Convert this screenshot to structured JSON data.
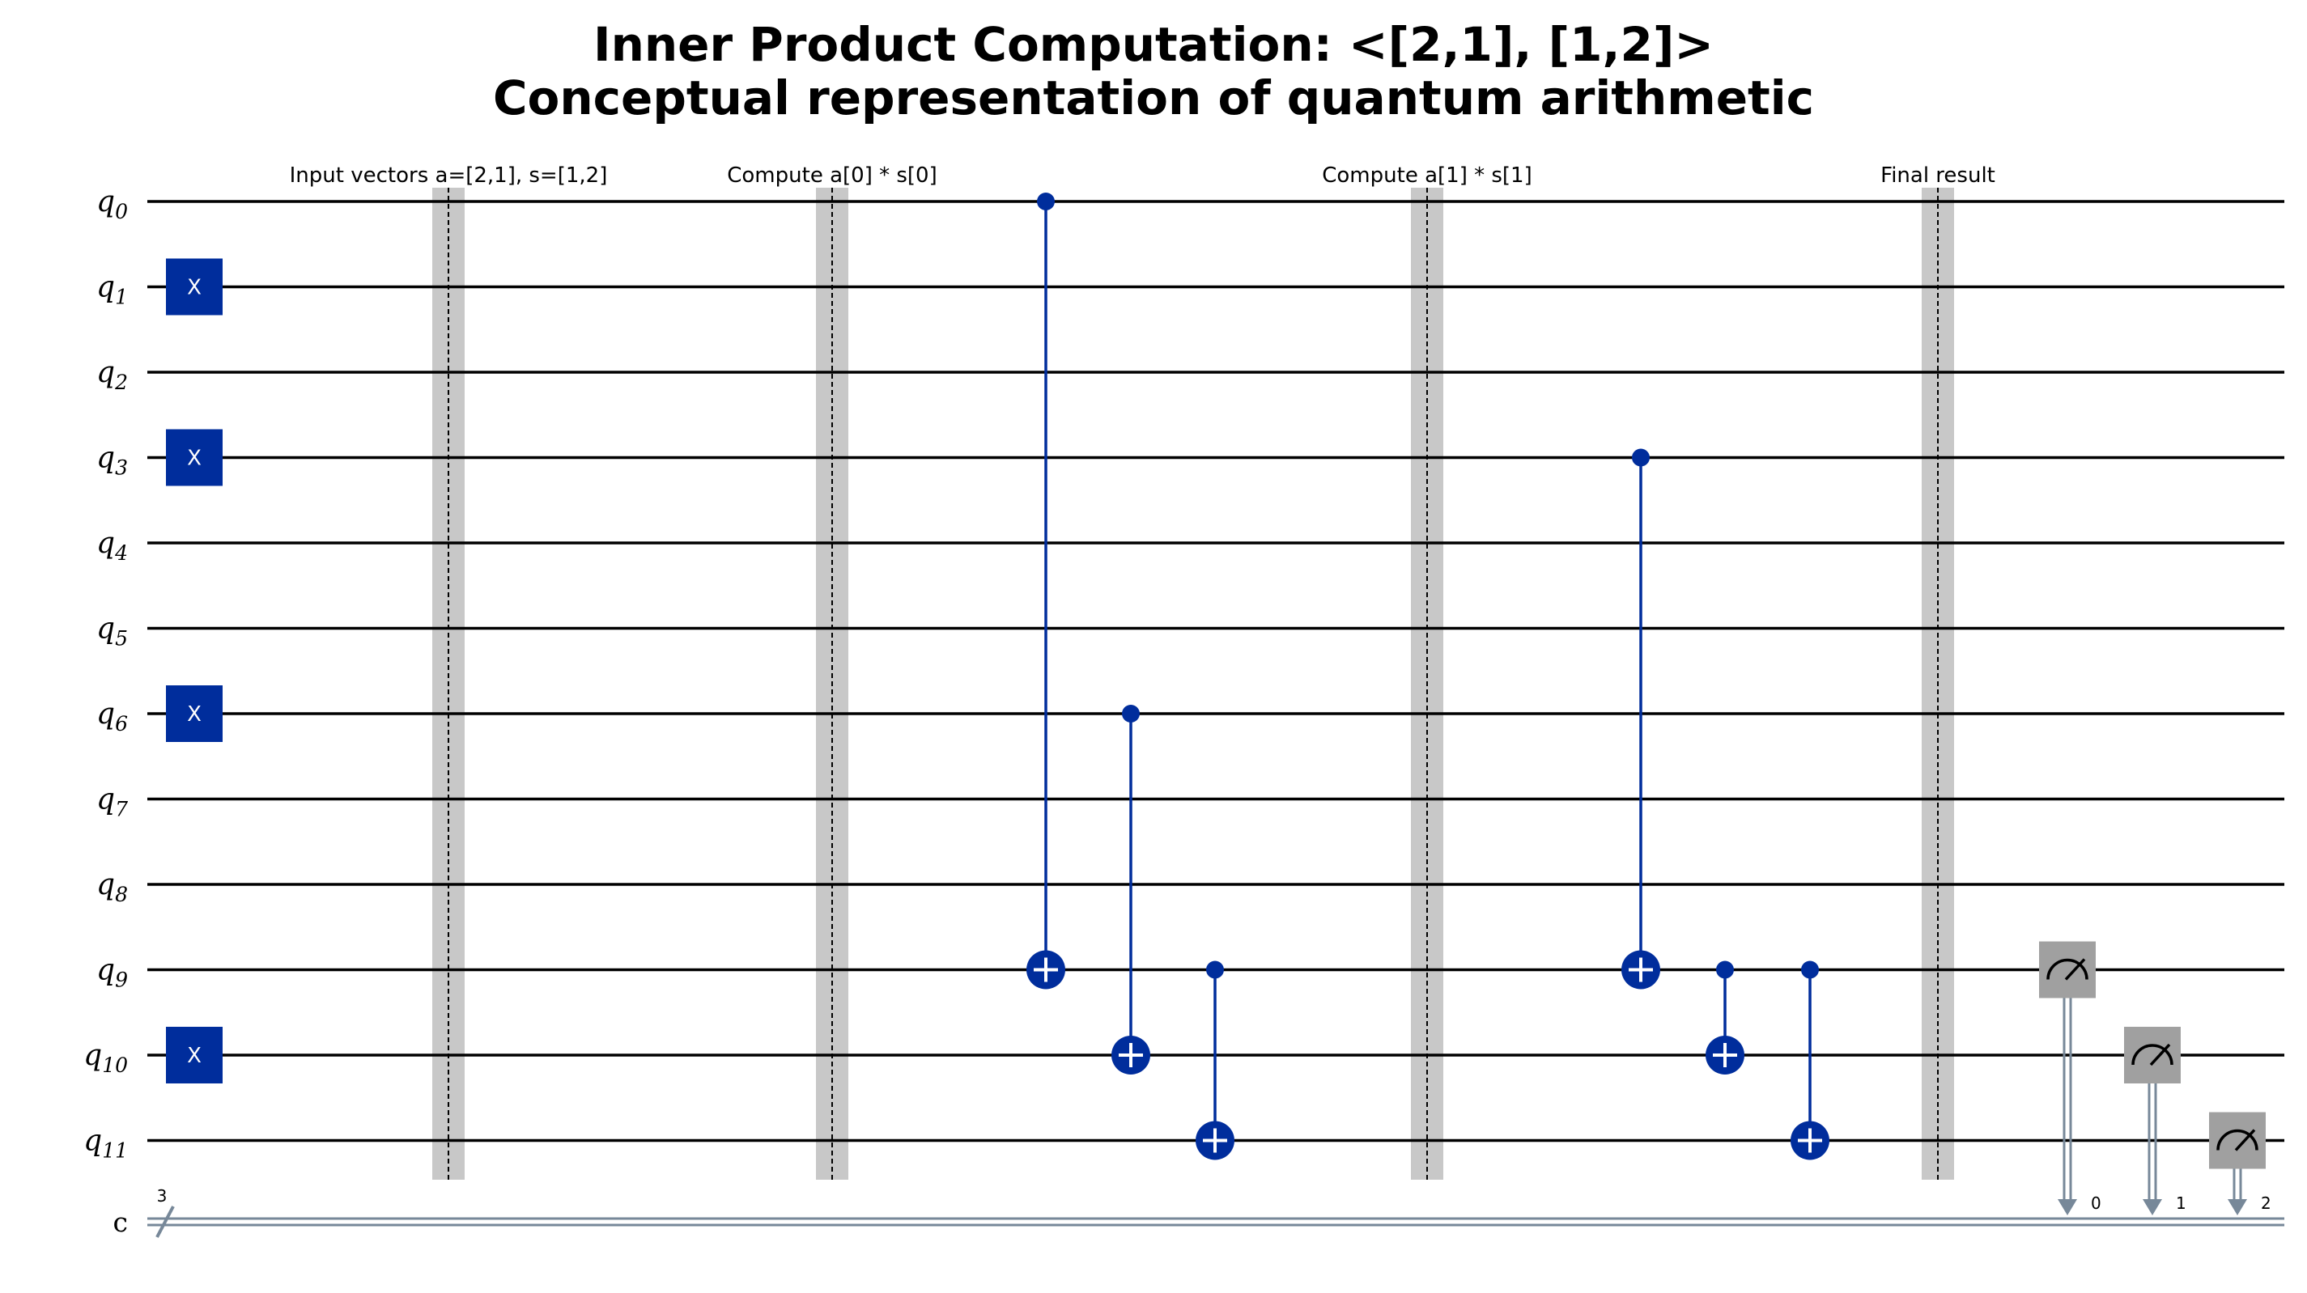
{
  "title": {
    "line1": "Inner Product Computation: <[2,1], [1,2]>",
    "line2": "Conceptual representation of quantum arithmetic"
  },
  "qubits": [
    {
      "name": "q",
      "index": "0"
    },
    {
      "name": "q",
      "index": "1"
    },
    {
      "name": "q",
      "index": "2"
    },
    {
      "name": "q",
      "index": "3"
    },
    {
      "name": "q",
      "index": "4"
    },
    {
      "name": "q",
      "index": "5"
    },
    {
      "name": "q",
      "index": "6"
    },
    {
      "name": "q",
      "index": "7"
    },
    {
      "name": "q",
      "index": "8"
    },
    {
      "name": "q",
      "index": "9"
    },
    {
      "name": "q",
      "index": "10"
    },
    {
      "name": "q",
      "index": "11"
    }
  ],
  "classical_register": {
    "name": "c",
    "size": "3"
  },
  "barriers": [
    {
      "label": "Input vectors a=[2,1], s=[1,2]"
    },
    {
      "label": "Compute a[0] * s[0]"
    },
    {
      "label": "Compute a[1] * s[1]"
    },
    {
      "label": "Final result"
    }
  ],
  "x_gates": [
    {
      "qubit": 1,
      "label": "X"
    },
    {
      "qubit": 3,
      "label": "X"
    },
    {
      "qubit": 6,
      "label": "X"
    },
    {
      "qubit": 10,
      "label": "X"
    }
  ],
  "cnots": [
    {
      "control": 0,
      "target": 9
    },
    {
      "control": 6,
      "target": 10
    },
    {
      "control": 9,
      "target": 11
    },
    {
      "control": 3,
      "target": 9
    },
    {
      "control": 9,
      "target": 10
    },
    {
      "control": 9,
      "target": 11
    }
  ],
  "measurements": [
    {
      "qubit": 9,
      "bit": "0"
    },
    {
      "qubit": 10,
      "bit": "1"
    },
    {
      "qubit": 11,
      "bit": "2"
    }
  ],
  "colors": {
    "gate": "#002d9c",
    "barrier": "#c8c8c8",
    "measure_box": "#a0a0a0",
    "classical_wire": "#778899",
    "wire": "#000000"
  }
}
